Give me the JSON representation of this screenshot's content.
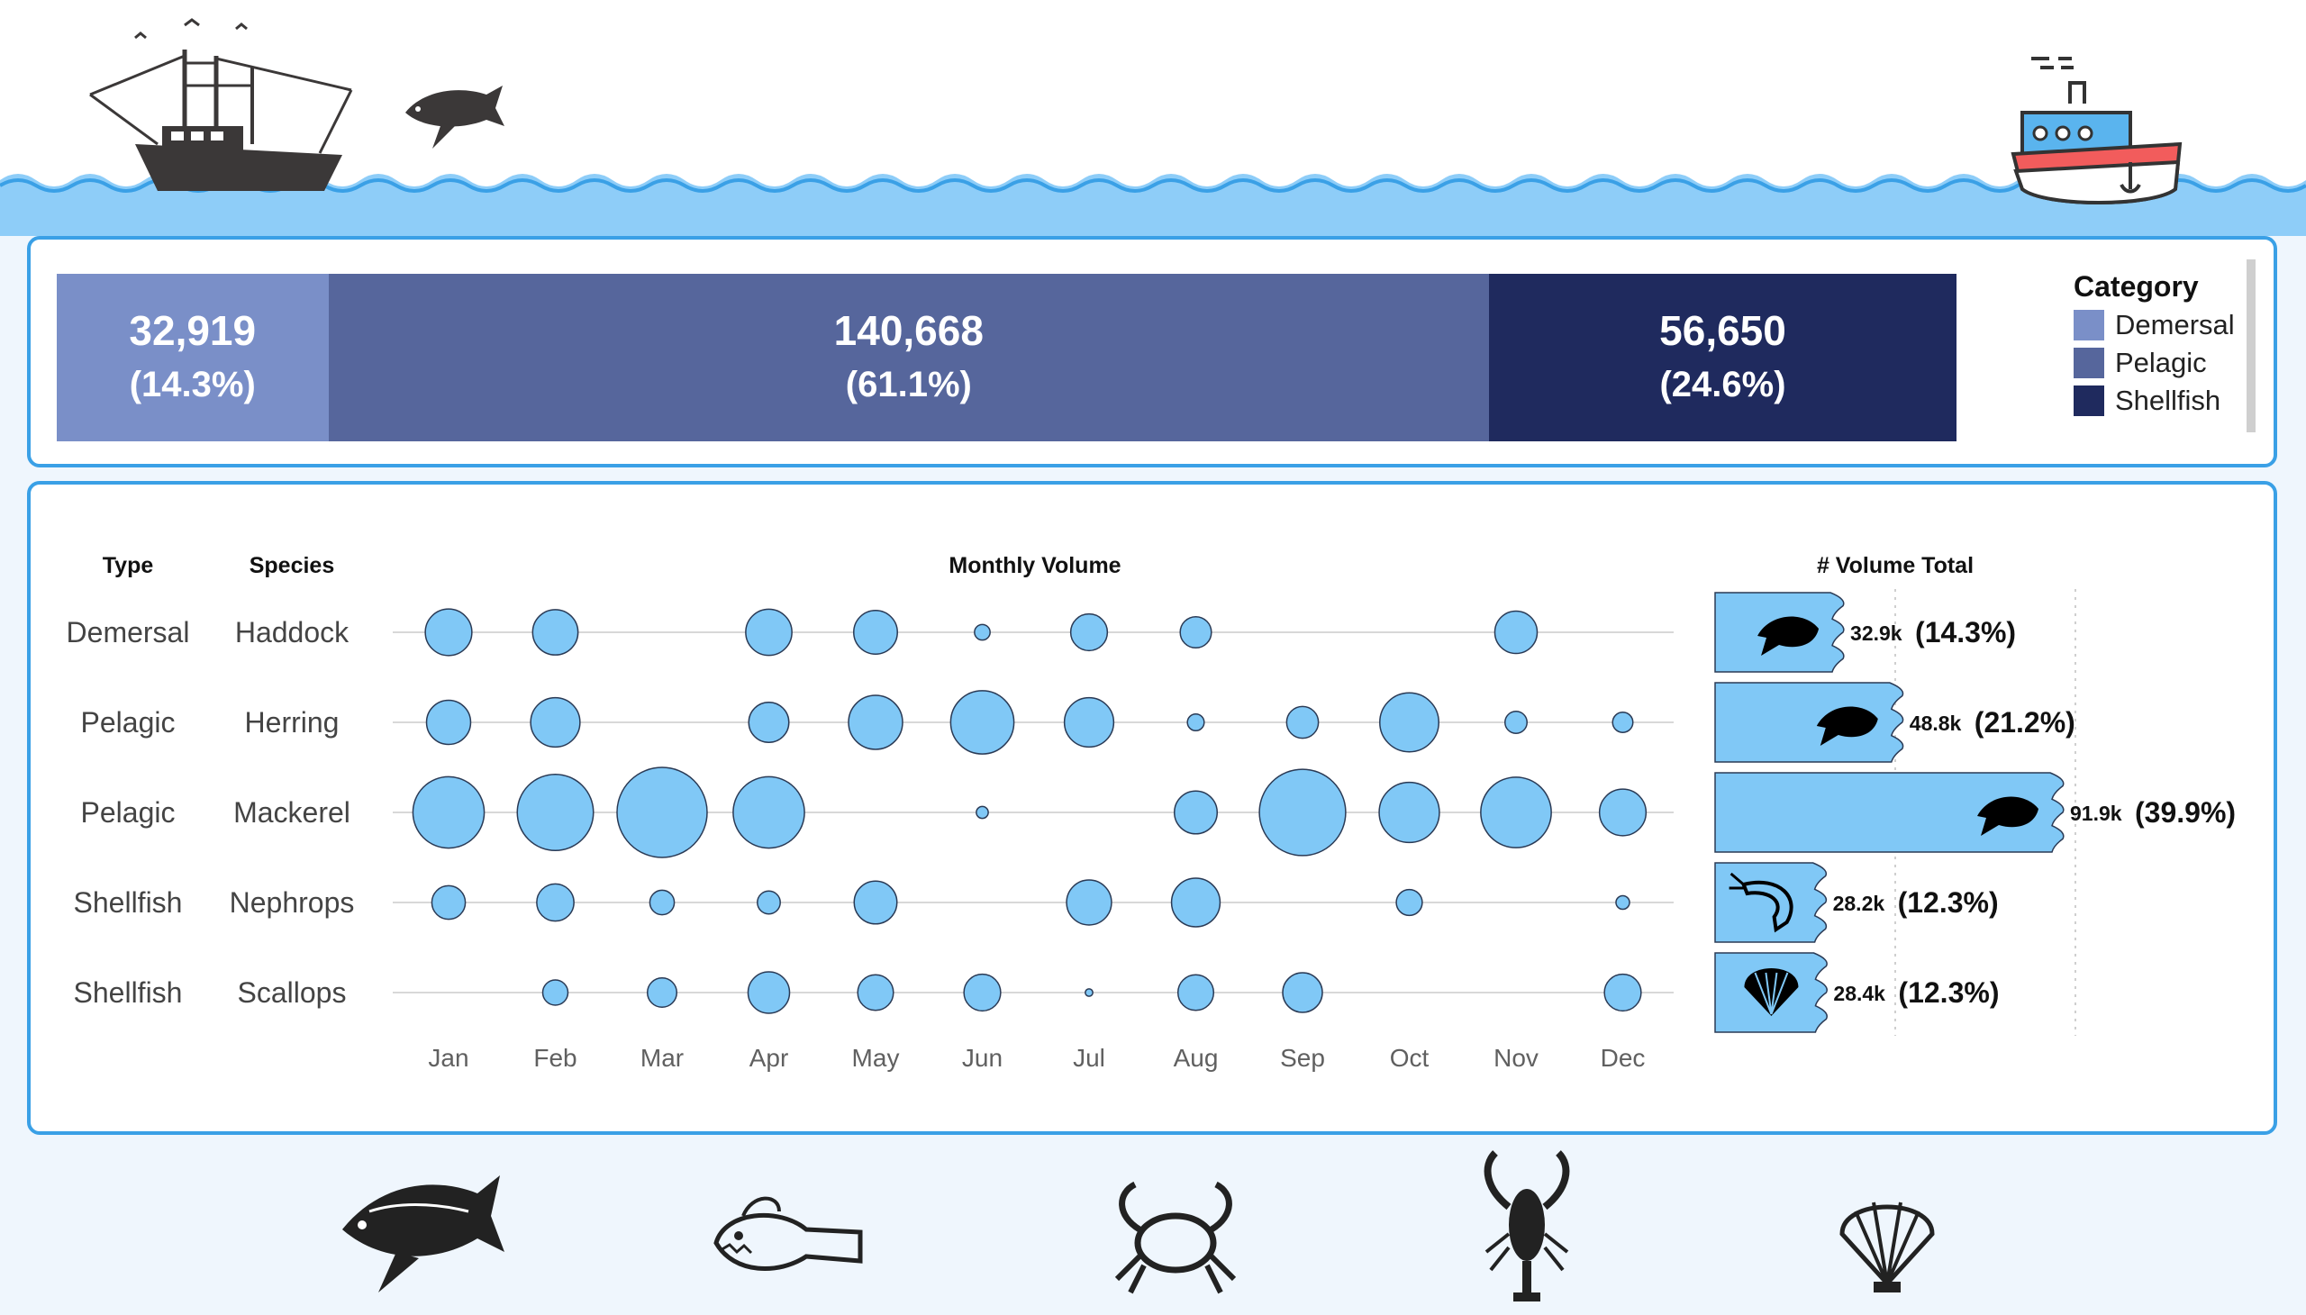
{
  "colors": {
    "demersal": "#7a8fc8",
    "pelagic": "#56669c",
    "shellfish": "#1f2a5e",
    "bubble_fill": "#80c8f6",
    "bubble_stroke": "#2a3a55",
    "panel_border": "#3aa0e6",
    "water": "#8ecdf8"
  },
  "summary": {
    "segments": [
      {
        "category": "Demersal",
        "value": 32919,
        "value_label": "32,919",
        "pct_label": "(14.3%)",
        "color": "#7a8fc8"
      },
      {
        "category": "Pelagic",
        "value": 140668,
        "value_label": "140,668",
        "pct_label": "(61.1%)",
        "color": "#56669c"
      },
      {
        "category": "Shellfish",
        "value": 56650,
        "value_label": "56,650",
        "pct_label": "(24.6%)",
        "color": "#1f2a5e"
      }
    ],
    "legend": {
      "title": "Category",
      "items": [
        {
          "label": "Demersal",
          "color": "#7a8fc8"
        },
        {
          "label": "Pelagic",
          "color": "#56669c"
        },
        {
          "label": "Shellfish",
          "color": "#1f2a5e"
        }
      ]
    }
  },
  "table": {
    "headers": {
      "type": "Type",
      "species": "Species",
      "monthly": "Monthly Volume",
      "total": "# Volume Total"
    }
  },
  "chart_data": [
    {
      "type": "stacked-bar",
      "categories": [
        "Demersal",
        "Pelagic",
        "Shellfish"
      ],
      "values": [
        32919,
        140668,
        56650
      ],
      "percent": [
        14.3,
        61.1,
        24.6
      ],
      "legend_title": "Category",
      "legend_position": "right"
    },
    {
      "type": "bubble",
      "title": "Monthly Volume",
      "x": [
        "Jan",
        "Feb",
        "Mar",
        "Apr",
        "May",
        "Jun",
        "Jul",
        "Aug",
        "Sep",
        "Oct",
        "Nov",
        "Dec"
      ],
      "rows": [
        {
          "type": "Demersal",
          "species": "Haddock",
          "values": [
            5800,
            5500,
            null,
            5700,
            5100,
            650,
            3600,
            2600,
            null,
            null,
            4800,
            null
          ]
        },
        {
          "type": "Pelagic",
          "species": "Herring",
          "values": [
            5200,
            6500,
            null,
            4300,
            7800,
            10700,
            6500,
            750,
            2700,
            9300,
            1300,
            1100
          ]
        },
        {
          "type": "Pelagic",
          "species": "Mackerel",
          "values": [
            13600,
            15500,
            21700,
            13600,
            null,
            380,
            null,
            4900,
            19900,
            9700,
            13300,
            5800
          ]
        },
        {
          "type": "Shellfish",
          "species": "Nephrops",
          "values": [
            3000,
            3700,
            1600,
            1400,
            4900,
            null,
            5400,
            6300,
            null,
            1800,
            null,
            490
          ]
        },
        {
          "type": "Shellfish",
          "species": "Scallops",
          "values": null
        }
      ]
    },
    {
      "type": "bar",
      "title": "# Volume Total",
      "categories": [
        "Haddock",
        "Herring",
        "Mackerel",
        "Nephrops",
        "Scallops"
      ],
      "values": [
        32.9,
        48.8,
        91.9,
        28.2,
        28.4
      ],
      "unit": "k",
      "value_labels": [
        "32.9k",
        "48.8k",
        "91.9k",
        "28.2k",
        "28.4k"
      ],
      "percent_labels": [
        "(14.3%)",
        "(21.2%)",
        "(39.9%)",
        "(12.3%)",
        "(12.3%)"
      ],
      "icons": [
        "fish-icon",
        "fish-icon",
        "fish-icon",
        "shrimp-icon",
        "scallop-icon"
      ]
    }
  ]
}
